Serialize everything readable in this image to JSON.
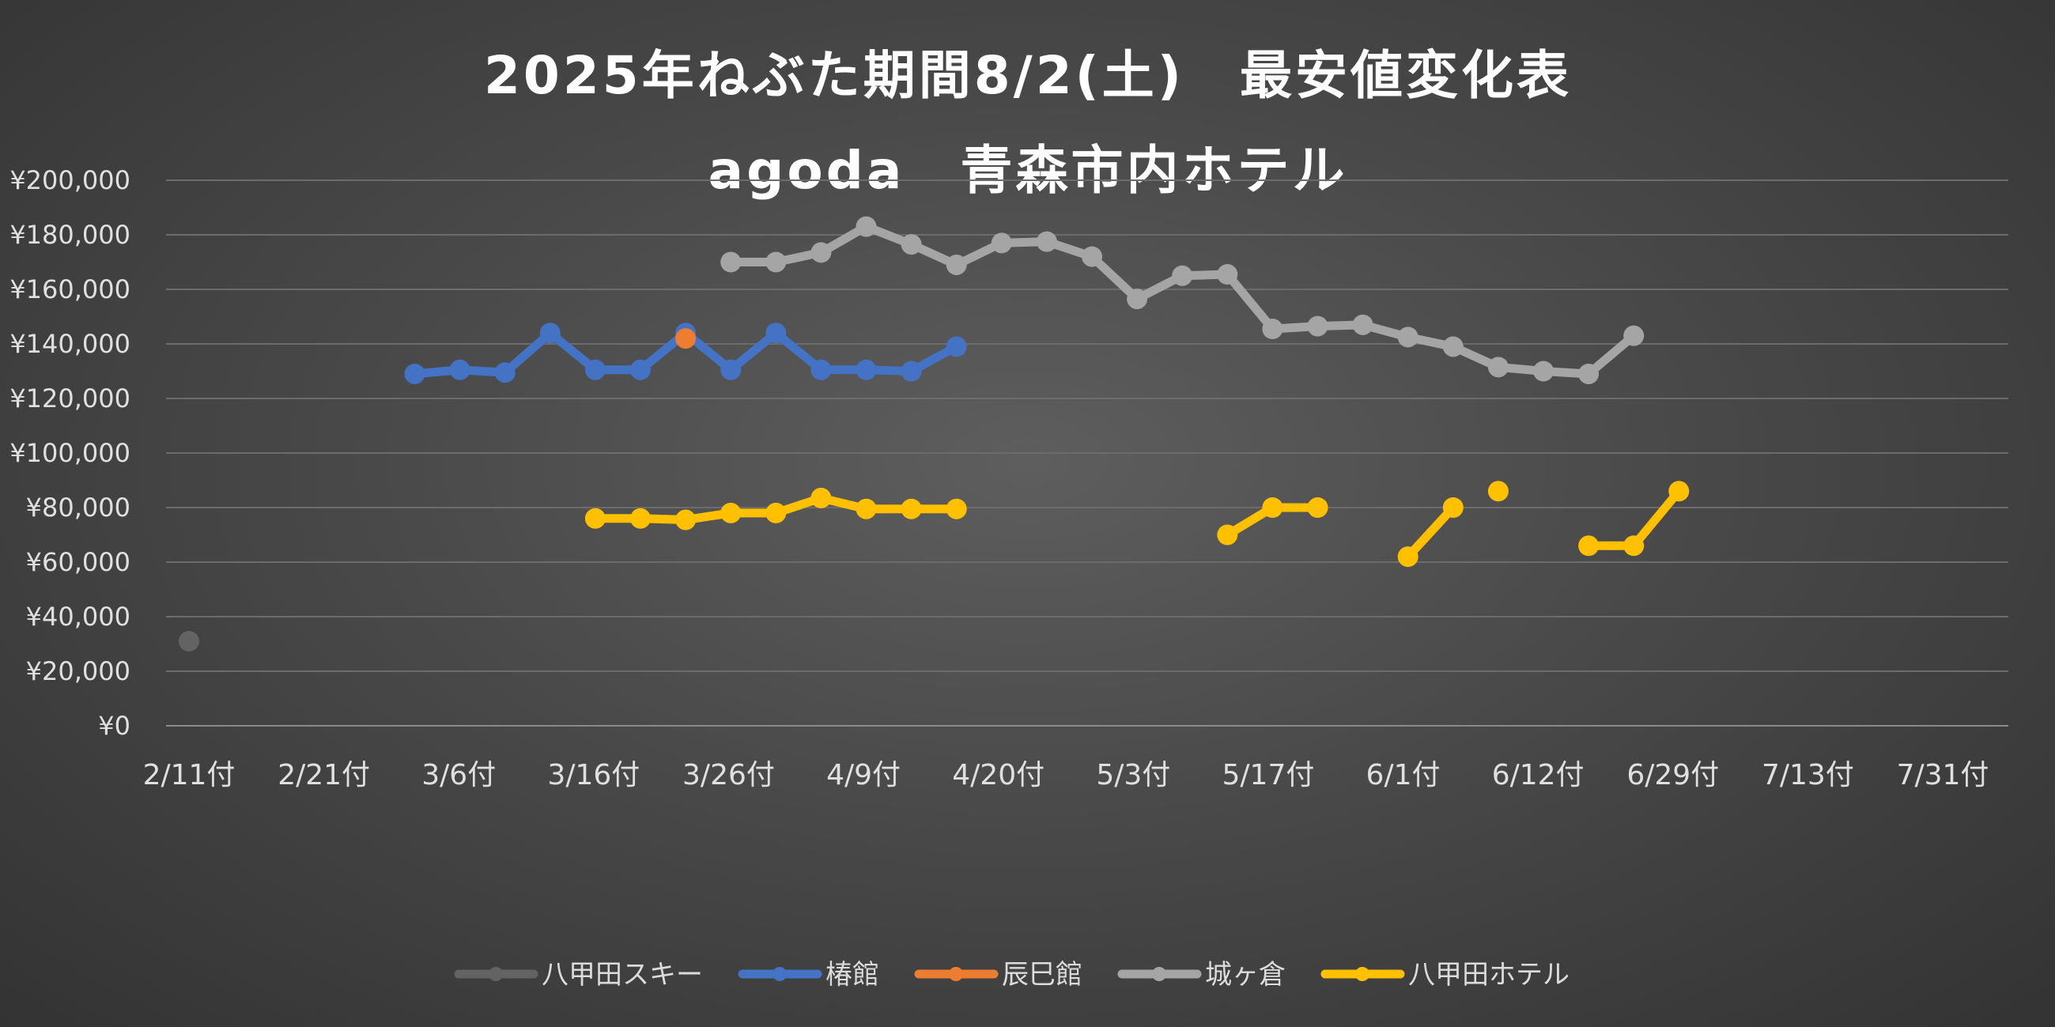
{
  "chart_data": {
    "type": "line",
    "title": "2025年ねぶた期間8/2(土)　最安値変化表",
    "subtitle": "agoda　青森市内ホテル",
    "ylim": [
      0,
      200000
    ],
    "y_ticks": [
      "¥0",
      "¥20,000",
      "¥40,000",
      "¥60,000",
      "¥80,000",
      "¥100,000",
      "¥120,000",
      "¥140,000",
      "¥160,000",
      "¥180,000",
      "¥200,000"
    ],
    "x_tick_labels": [
      "2/11付",
      "2/21付",
      "3/6付",
      "3/16付",
      "3/26付",
      "4/9付",
      "4/20付",
      "5/3付",
      "5/17付",
      "6/1付",
      "6/12付",
      "6/29付",
      "7/13付",
      "7/31付"
    ],
    "grid": true,
    "legend_position": "bottom",
    "series": [
      {
        "name": "八甲田スキー",
        "color": "#636363",
        "values": [
          31000
        ]
      },
      {
        "name": "椿館",
        "color": "#4472c4",
        "values": [
          129000,
          130500,
          129500,
          144000,
          130500,
          130500,
          144000,
          130500,
          144000,
          130500,
          130500,
          130000,
          139000
        ]
      },
      {
        "name": "辰巳館",
        "color": "#ed7d31",
        "values": [
          142000
        ]
      },
      {
        "name": "城ヶ倉",
        "color": "#a5a5a5",
        "values": [
          170000,
          170000,
          173500,
          183000,
          176500,
          169000,
          177000,
          177500,
          172000,
          156500,
          165000,
          165500,
          145500,
          146500,
          147000,
          142500,
          139000,
          131500,
          130000,
          129000,
          143000
        ]
      },
      {
        "name": "八甲田ホテル",
        "color": "#ffc000",
        "values": [
          76000,
          76000,
          75500,
          78000,
          78000,
          83500,
          79500,
          79500,
          79500,
          70000,
          80000,
          80000,
          62000,
          80000,
          86000,
          66000,
          66000,
          86000
        ]
      }
    ]
  }
}
